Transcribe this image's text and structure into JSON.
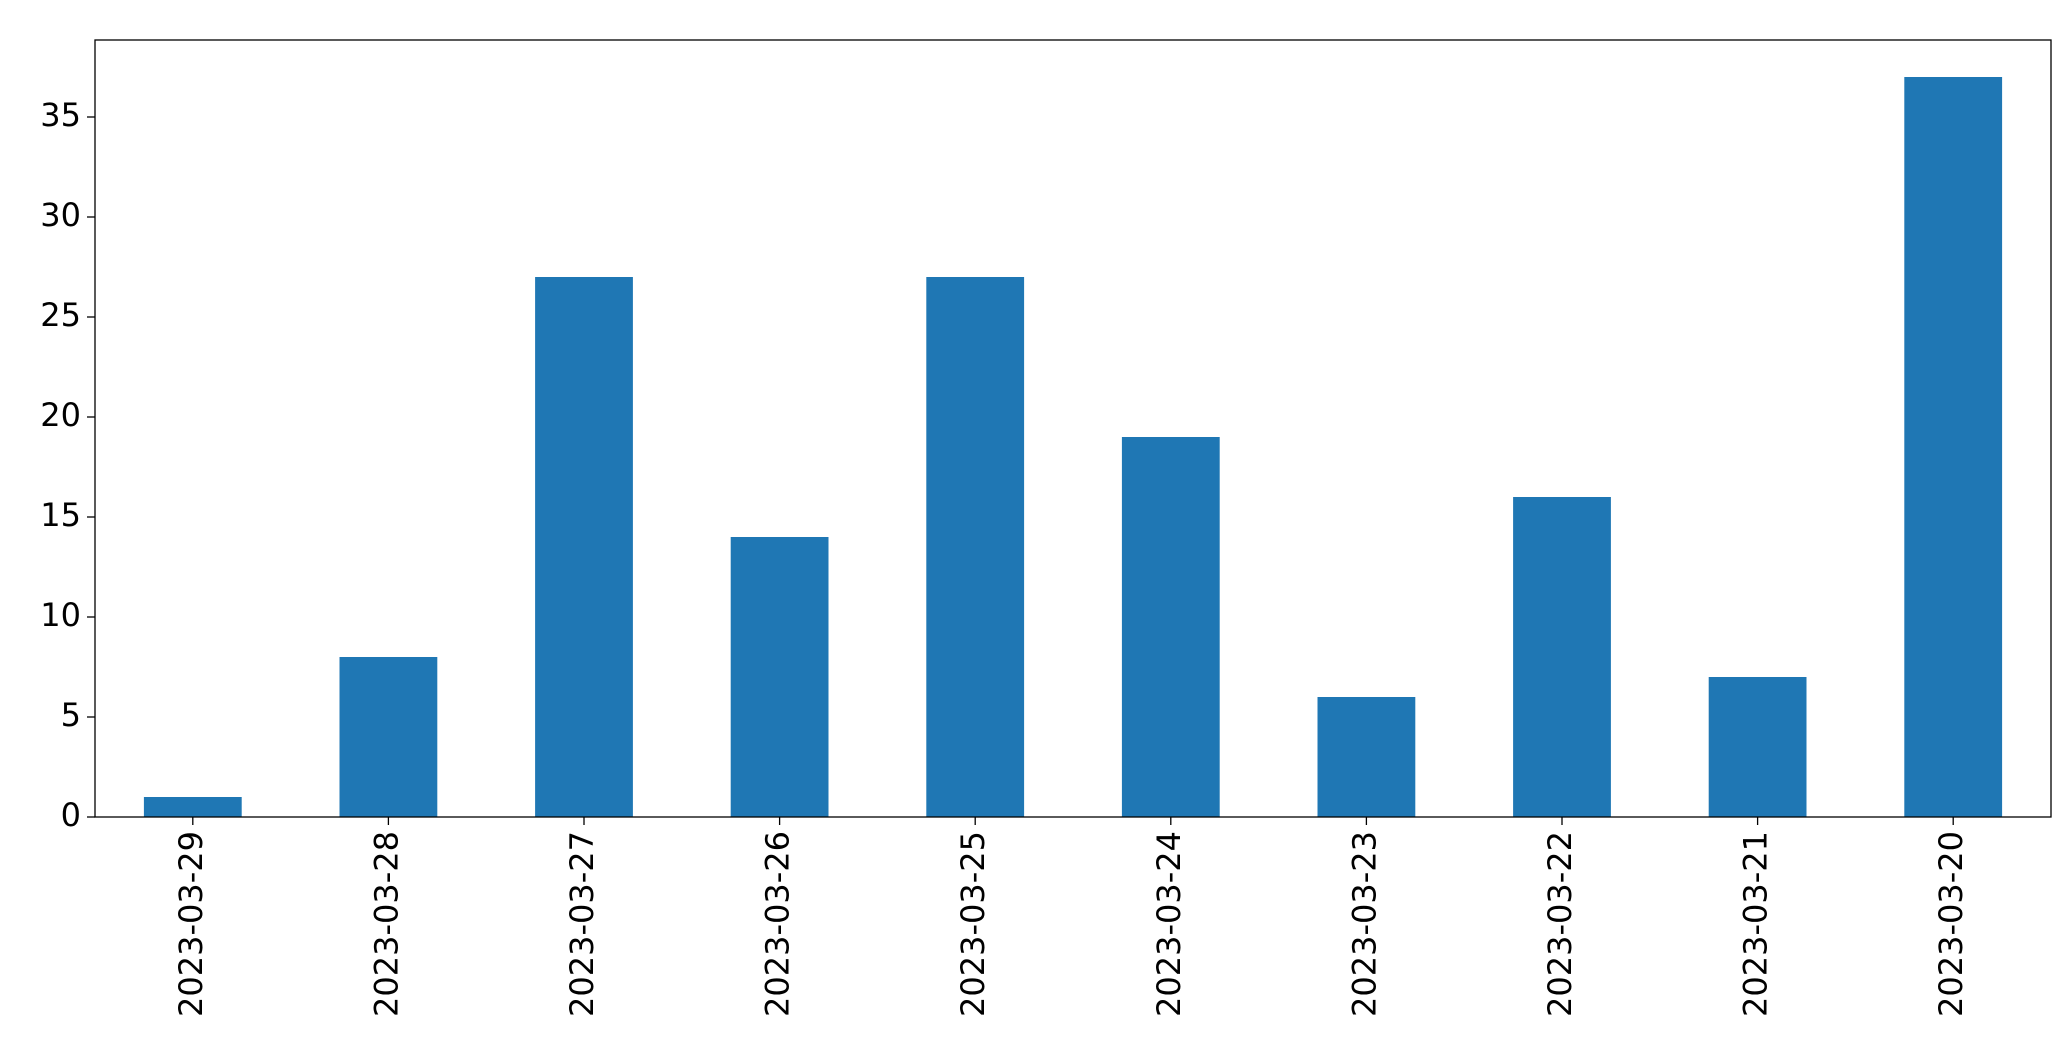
{
  "chart_data": {
    "type": "bar",
    "categories": [
      "2023-03-29",
      "2023-03-28",
      "2023-03-27",
      "2023-03-26",
      "2023-03-25",
      "2023-03-24",
      "2023-03-23",
      "2023-03-22",
      "2023-03-21",
      "2023-03-20"
    ],
    "values": [
      1,
      8,
      27,
      14,
      27,
      19,
      6,
      16,
      7,
      37
    ],
    "color": "#1f77b4",
    "ylim": [
      0,
      38.85
    ],
    "yticks": [
      0,
      5,
      10,
      15,
      20,
      25,
      30,
      35
    ],
    "grid": false
  }
}
